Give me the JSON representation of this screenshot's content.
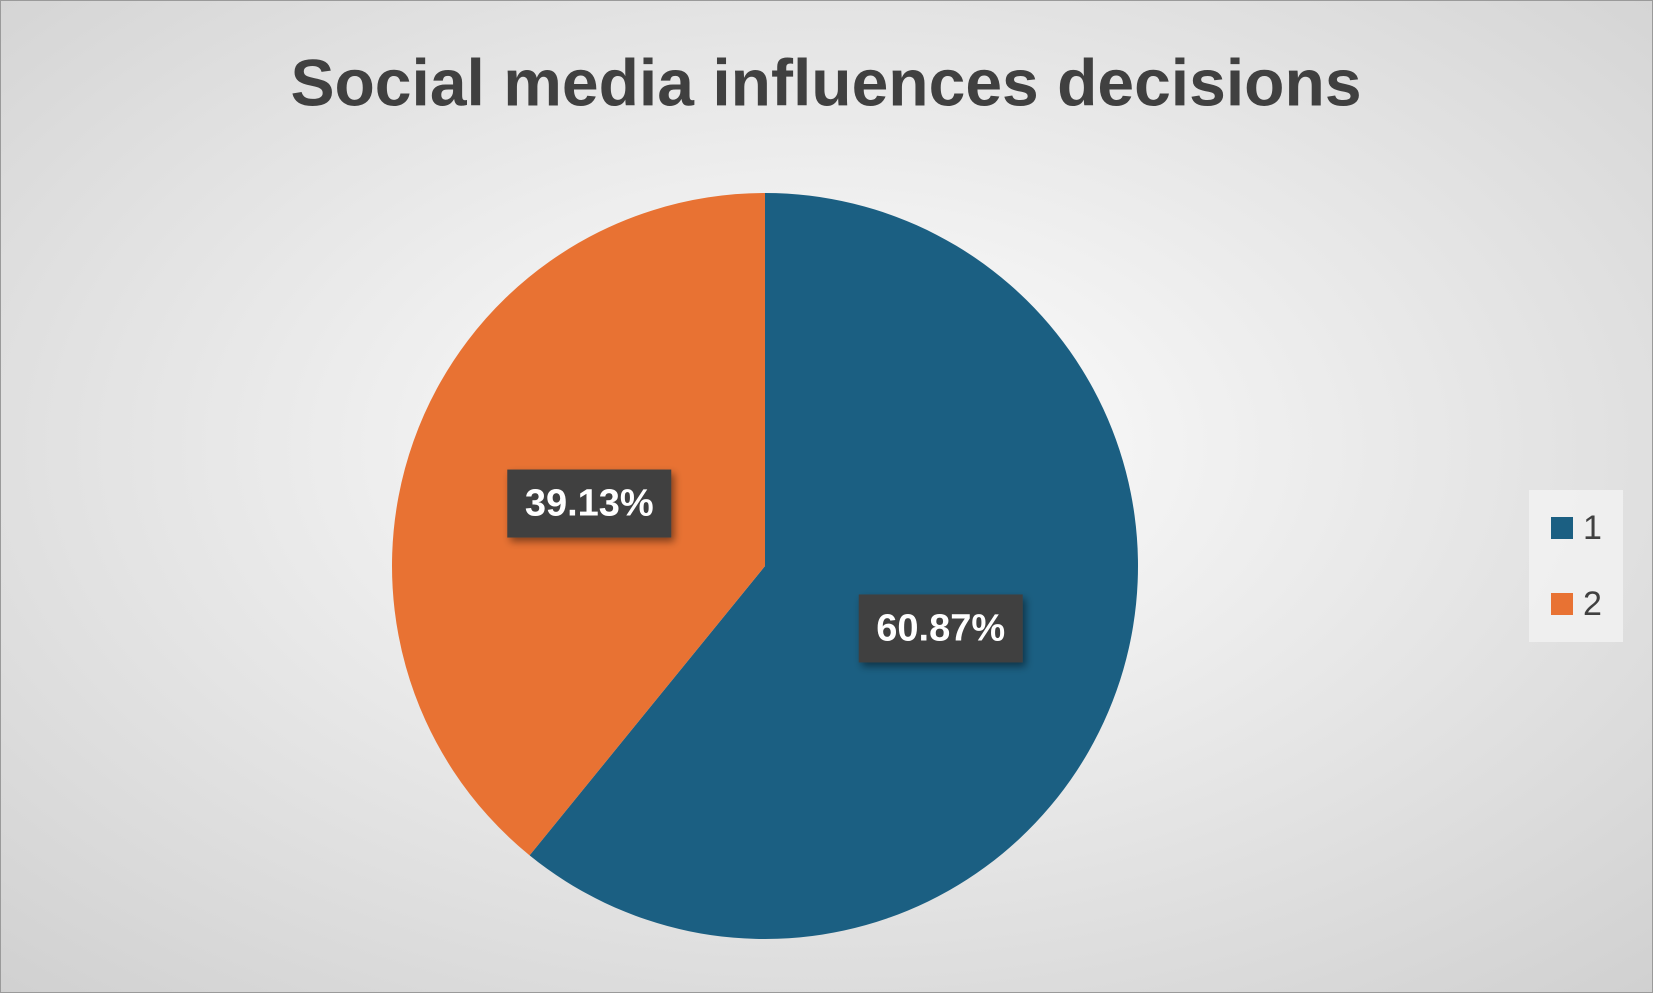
{
  "chart_data": {
    "type": "pie",
    "title": "Social media influences decisions",
    "categories": [
      "1",
      "2"
    ],
    "values": [
      60.87,
      39.13
    ],
    "value_labels": [
      "60.87%",
      "39.13%"
    ],
    "colors": [
      "#1b5f82",
      "#e87233"
    ],
    "legend": "right"
  }
}
